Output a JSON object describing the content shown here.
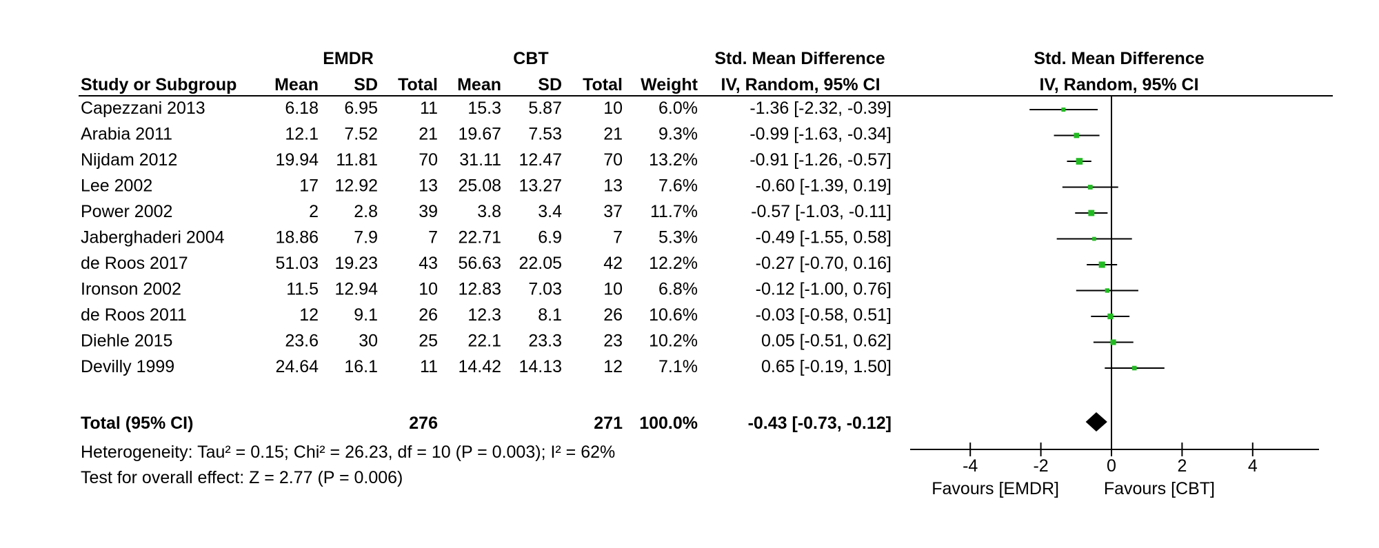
{
  "headers": {
    "group1": "EMDR",
    "group2": "CBT",
    "effect_top": "Std. Mean Difference",
    "plot_top": "Std. Mean Difference",
    "study": "Study or Subgroup",
    "mean1": "Mean",
    "sd1": "SD",
    "total1": "Total",
    "mean2": "Mean",
    "sd2": "SD",
    "total2": "Total",
    "weight": "Weight",
    "effect_sub": "IV, Random, 95% CI",
    "plot_sub": "IV, Random, 95% CI"
  },
  "studies": [
    {
      "name": "Capezzani 2013",
      "m1": "6.18",
      "sd1": "6.95",
      "n1": "11",
      "m2": "15.3",
      "sd2": "5.87",
      "n2": "10",
      "weight": "6.0%",
      "ci": "-1.36 [-2.32, -0.39]"
    },
    {
      "name": "Arabia 2011",
      "m1": "12.1",
      "sd1": "7.52",
      "n1": "21",
      "m2": "19.67",
      "sd2": "7.53",
      "n2": "21",
      "weight": "9.3%",
      "ci": "-0.99 [-1.63, -0.34]"
    },
    {
      "name": "Nijdam 2012",
      "m1": "19.94",
      "sd1": "11.81",
      "n1": "70",
      "m2": "31.11",
      "sd2": "12.47",
      "n2": "70",
      "weight": "13.2%",
      "ci": "-0.91 [-1.26, -0.57]"
    },
    {
      "name": "Lee 2002",
      "m1": "17",
      "sd1": "12.92",
      "n1": "13",
      "m2": "25.08",
      "sd2": "13.27",
      "n2": "13",
      "weight": "7.6%",
      "ci": "-0.60 [-1.39, 0.19]"
    },
    {
      "name": "Power 2002",
      "m1": "2",
      "sd1": "2.8",
      "n1": "39",
      "m2": "3.8",
      "sd2": "3.4",
      "n2": "37",
      "weight": "11.7%",
      "ci": "-0.57 [-1.03, -0.11]"
    },
    {
      "name": "Jaberghaderi 2004",
      "m1": "18.86",
      "sd1": "7.9",
      "n1": "7",
      "m2": "22.71",
      "sd2": "6.9",
      "n2": "7",
      "weight": "5.3%",
      "ci": "-0.49 [-1.55, 0.58]"
    },
    {
      "name": "de Roos 2017",
      "m1": "51.03",
      "sd1": "19.23",
      "n1": "43",
      "m2": "56.63",
      "sd2": "22.05",
      "n2": "42",
      "weight": "12.2%",
      "ci": "-0.27 [-0.70, 0.16]"
    },
    {
      "name": "Ironson 2002",
      "m1": "11.5",
      "sd1": "12.94",
      "n1": "10",
      "m2": "12.83",
      "sd2": "7.03",
      "n2": "10",
      "weight": "6.8%",
      "ci": "-0.12 [-1.00, 0.76]"
    },
    {
      "name": "de Roos 2011",
      "m1": "12",
      "sd1": "9.1",
      "n1": "26",
      "m2": "12.3",
      "sd2": "8.1",
      "n2": "26",
      "weight": "10.6%",
      "ci": "-0.03 [-0.58, 0.51]"
    },
    {
      "name": "Diehle 2015",
      "m1": "23.6",
      "sd1": "30",
      "n1": "25",
      "m2": "22.1",
      "sd2": "23.3",
      "n2": "23",
      "weight": "10.2%",
      "ci": "0.05 [-0.51, 0.62]"
    },
    {
      "name": "Devilly 1999",
      "m1": "24.64",
      "sd1": "16.1",
      "n1": "11",
      "m2": "14.42",
      "sd2": "14.13",
      "n2": "12",
      "weight": "7.1%",
      "ci": "0.65 [-0.19, 1.50]"
    }
  ],
  "total": {
    "label": "Total (95% CI)",
    "n1": "276",
    "n2": "271",
    "weight": "100.0%",
    "ci": "-0.43 [-0.73, -0.12]"
  },
  "heterogeneity": "Heterogeneity: Tau² = 0.15; Chi² = 26.23, df = 10 (P = 0.003); I² = 62%",
  "overall_effect": "Test for overall effect: Z = 2.77 (P = 0.006)",
  "axis": {
    "ticks": [
      "-4",
      "-2",
      "0",
      "2",
      "4"
    ],
    "favours_left": "Favours [EMDR]",
    "favours_right": "Favours [CBT]"
  },
  "colors": {
    "point": "#22bb22",
    "diamond": "#000000",
    "line": "#000000"
  },
  "chart_data": {
    "type": "forest",
    "x": [
      -1.36,
      -0.99,
      -0.91,
      -0.6,
      -0.57,
      -0.49,
      -0.27,
      -0.12,
      -0.03,
      0.05,
      0.65
    ],
    "lower": [
      -2.32,
      -1.63,
      -1.26,
      -1.39,
      -1.03,
      -1.55,
      -0.7,
      -1.0,
      -0.58,
      -0.51,
      -0.19
    ],
    "upper": [
      -0.39,
      -0.34,
      -0.57,
      0.19,
      -0.11,
      0.58,
      0.16,
      0.76,
      0.51,
      0.62,
      1.5
    ],
    "weights": [
      6.0,
      9.3,
      13.2,
      7.6,
      11.7,
      5.3,
      12.2,
      6.8,
      10.6,
      10.2,
      7.1
    ],
    "pooled": {
      "estimate": -0.43,
      "lower": -0.73,
      "upper": -0.12
    },
    "xlim": [
      -5,
      5
    ],
    "xticks": [
      -4,
      -2,
      0,
      2,
      4
    ]
  }
}
